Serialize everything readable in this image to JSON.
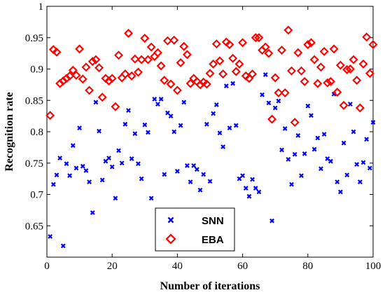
{
  "chart_data": {
    "type": "scatter",
    "xlabel": "Number of iterations",
    "ylabel": "Recognition rate",
    "xlim": [
      0,
      100
    ],
    "ylim": [
      0.6,
      1.0
    ],
    "x_ticks": [
      0,
      20,
      40,
      60,
      80,
      100
    ],
    "y_ticks": [
      0.65,
      0.7,
      0.75,
      0.8,
      0.85,
      0.9,
      0.95,
      1
    ],
    "x_tick_labels": [
      "0",
      "20",
      "40",
      "60",
      "80",
      "100"
    ],
    "y_tick_labels": [
      "0.65",
      "0.7",
      "0.75",
      "0.8",
      "0.85",
      "0.9",
      "0.95",
      "1"
    ],
    "grid": false,
    "legend_position": "bottom-center",
    "series": [
      {
        "name": "SNN",
        "color": "#0000ff",
        "marker": "x",
        "points": [
          [
            1,
            0.633
          ],
          [
            2,
            0.716
          ],
          [
            3,
            0.731
          ],
          [
            4,
            0.758
          ],
          [
            5,
            0.618
          ],
          [
            6,
            0.749
          ],
          [
            7,
            0.73
          ],
          [
            8,
            0.778
          ],
          [
            9,
            0.742
          ],
          [
            10,
            0.806
          ],
          [
            11,
            0.745
          ],
          [
            12,
            0.738
          ],
          [
            13,
            0.72
          ],
          [
            14,
            0.671
          ],
          [
            15,
            0.847
          ],
          [
            16,
            0.801
          ],
          [
            17,
            0.723
          ],
          [
            18,
            0.753
          ],
          [
            19,
            0.758
          ],
          [
            20,
            0.744
          ],
          [
            21,
            0.694
          ],
          [
            22,
            0.77
          ],
          [
            23,
            0.75
          ],
          [
            24,
            0.812
          ],
          [
            25,
            0.834
          ],
          [
            26,
            0.757
          ],
          [
            27,
            0.797
          ],
          [
            28,
            0.749
          ],
          [
            29,
            0.725
          ],
          [
            30,
            0.811
          ],
          [
            31,
            0.799
          ],
          [
            32,
            0.694
          ],
          [
            33,
            0.852
          ],
          [
            34,
            0.844
          ],
          [
            35,
            0.852
          ],
          [
            36,
            0.732
          ],
          [
            37,
            0.83
          ],
          [
            38,
            0.825
          ],
          [
            39,
            0.8
          ],
          [
            40,
            0.737
          ],
          [
            41,
            0.81
          ],
          [
            42,
            0.847
          ],
          [
            43,
            0.746
          ],
          [
            44,
            0.72
          ],
          [
            45,
            0.746
          ],
          [
            46,
            0.74
          ],
          [
            47,
            0.707
          ],
          [
            48,
            0.732
          ],
          [
            49,
            0.812
          ],
          [
            50,
            0.721
          ],
          [
            51,
            0.829
          ],
          [
            52,
            0.843
          ],
          [
            53,
            0.798
          ],
          [
            54,
            0.776
          ],
          [
            55,
            0.873
          ],
          [
            56,
            0.806
          ],
          [
            57,
            0.877
          ],
          [
            58,
            0.81
          ],
          [
            59,
            0.725
          ],
          [
            60,
            0.73
          ],
          [
            61,
            0.71
          ],
          [
            62,
            0.697
          ],
          [
            63,
            0.724
          ],
          [
            64,
            0.71
          ],
          [
            65,
            0.704
          ],
          [
            66,
            0.859
          ],
          [
            67,
            0.891
          ],
          [
            68,
            0.846
          ],
          [
            69,
            0.658
          ],
          [
            70,
            0.838
          ],
          [
            71,
            0.849
          ],
          [
            72,
            0.771
          ],
          [
            73,
            0.805
          ],
          [
            74,
            0.756
          ],
          [
            75,
            0.716
          ],
          [
            76,
            0.764
          ],
          [
            77,
            0.794
          ],
          [
            78,
            0.73
          ],
          [
            79,
            0.765
          ],
          [
            80,
            0.841
          ],
          [
            81,
            0.826
          ],
          [
            82,
            0.772
          ],
          [
            83,
            0.79
          ],
          [
            84,
            0.741
          ],
          [
            85,
            0.796
          ],
          [
            86,
            0.757
          ],
          [
            87,
            0.753
          ],
          [
            88,
            0.86
          ],
          [
            89,
            0.72
          ],
          [
            90,
            0.704
          ],
          [
            91,
            0.782
          ],
          [
            92,
            0.731
          ],
          [
            93,
            0.844
          ],
          [
            94,
            0.8
          ],
          [
            95,
            0.748
          ],
          [
            96,
            0.72
          ],
          [
            97,
            0.751
          ],
          [
            98,
            0.788
          ],
          [
            99,
            0.742
          ],
          [
            100,
            0.815
          ]
        ]
      },
      {
        "name": "EBA",
        "color": "#ff0000",
        "marker": "diamond",
        "points": [
          [
            1,
            0.826
          ],
          [
            2,
            0.931
          ],
          [
            3,
            0.927
          ],
          [
            4,
            0.877
          ],
          [
            5,
            0.881
          ],
          [
            6,
            0.885
          ],
          [
            7,
            0.889
          ],
          [
            8,
            0.898
          ],
          [
            9,
            0.89
          ],
          [
            10,
            0.932
          ],
          [
            11,
            0.884
          ],
          [
            12,
            0.903
          ],
          [
            13,
            0.866
          ],
          [
            14,
            0.912
          ],
          [
            15,
            0.915
          ],
          [
            16,
            0.902
          ],
          [
            17,
            0.855
          ],
          [
            18,
            0.885
          ],
          [
            19,
            0.881
          ],
          [
            20,
            0.885
          ],
          [
            21,
            0.84
          ],
          [
            22,
            0.922
          ],
          [
            23,
            0.886
          ],
          [
            24,
            0.892
          ],
          [
            25,
            0.957
          ],
          [
            26,
            0.889
          ],
          [
            27,
            0.916
          ],
          [
            28,
            0.895
          ],
          [
            29,
            0.915
          ],
          [
            30,
            0.949
          ],
          [
            31,
            0.915
          ],
          [
            32,
            0.935
          ],
          [
            33,
            0.92
          ],
          [
            34,
            0.926
          ],
          [
            35,
            0.905
          ],
          [
            36,
            0.882
          ],
          [
            37,
            0.945
          ],
          [
            38,
            0.876
          ],
          [
            39,
            0.946
          ],
          [
            40,
            0.866
          ],
          [
            41,
            0.91
          ],
          [
            42,
            0.936
          ],
          [
            43,
            0.923
          ],
          [
            44,
            0.877
          ],
          [
            45,
            0.885
          ],
          [
            46,
            0.88
          ],
          [
            47,
            0.875
          ],
          [
            48,
            0.879
          ],
          [
            49,
            0.876
          ],
          [
            50,
            0.893
          ],
          [
            51,
            0.908
          ],
          [
            52,
            0.94
          ],
          [
            53,
            0.913
          ],
          [
            54,
            0.892
          ],
          [
            55,
            0.943
          ],
          [
            56,
            0.939
          ],
          [
            57,
            0.917
          ],
          [
            58,
            0.896
          ],
          [
            59,
            0.908
          ],
          [
            60,
            0.942
          ],
          [
            61,
            0.889
          ],
          [
            62,
            0.885
          ],
          [
            63,
            0.892
          ],
          [
            64,
            0.95
          ],
          [
            65,
            0.95
          ],
          [
            66,
            0.93
          ],
          [
            67,
            0.935
          ],
          [
            68,
            0.925
          ],
          [
            69,
            0.82
          ],
          [
            70,
            0.886
          ],
          [
            71,
            0.862
          ],
          [
            72,
            0.93
          ],
          [
            73,
            0.862
          ],
          [
            74,
            0.962
          ],
          [
            75,
            0.897
          ],
          [
            76,
            0.815
          ],
          [
            77,
            0.926
          ],
          [
            78,
            0.897
          ],
          [
            79,
            0.88
          ],
          [
            80,
            0.939
          ],
          [
            81,
            0.942
          ],
          [
            82,
            0.915
          ],
          [
            83,
            0.877
          ],
          [
            84,
            0.903
          ],
          [
            85,
            0.928
          ],
          [
            86,
            0.878
          ],
          [
            87,
            0.88
          ],
          [
            88,
            0.932
          ],
          [
            89,
            0.863
          ],
          [
            90,
            0.906
          ],
          [
            91,
            0.842
          ],
          [
            92,
            0.899
          ],
          [
            93,
            0.9
          ],
          [
            94,
            0.915
          ],
          [
            95,
            0.882
          ],
          [
            96,
            0.838
          ],
          [
            97,
            0.908
          ],
          [
            98,
            0.951
          ],
          [
            99,
            0.893
          ],
          [
            100,
            0.939
          ]
        ]
      }
    ]
  }
}
